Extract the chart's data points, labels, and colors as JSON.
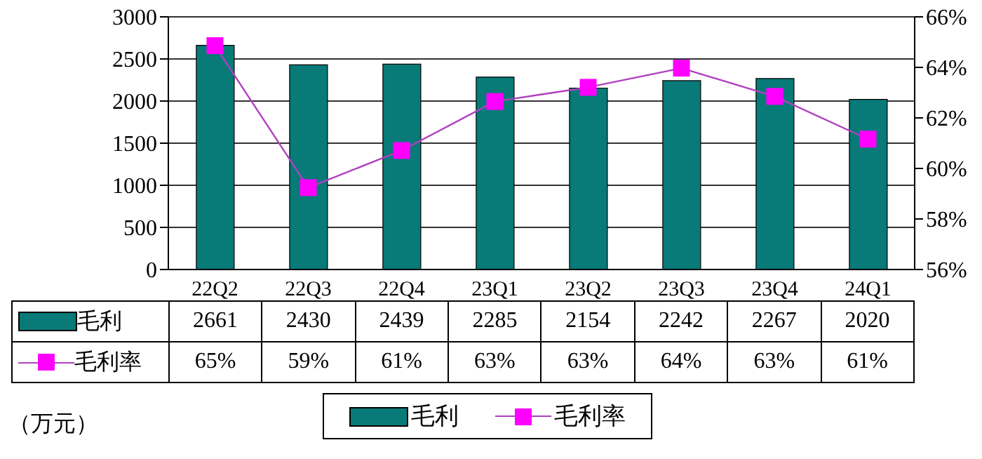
{
  "chart_data": {
    "type": "bar",
    "categories": [
      "22Q2",
      "22Q3",
      "22Q4",
      "23Q1",
      "23Q2",
      "23Q3",
      "23Q4",
      "24Q1"
    ],
    "series": [
      {
        "name": "毛利",
        "color": "#087a78",
        "values": [
          2661,
          2430,
          2439,
          2285,
          2154,
          2242,
          2267,
          2020
        ],
        "value_labels": [
          "2661",
          "2430",
          "2439",
          "2285",
          "2154",
          "2242",
          "2267",
          "2020"
        ]
      },
      {
        "name": "毛利率",
        "type": "line",
        "axis": "y2",
        "color": "#b040c0",
        "marker": "square",
        "values": [
          64.86,
          59.24,
          60.71,
          62.65,
          63.21,
          63.97,
          62.85,
          61.16
        ],
        "value_labels": [
          "65%",
          "59%",
          "61%",
          "63%",
          "63%",
          "64%",
          "63%",
          "61%"
        ]
      }
    ],
    "ylim": [
      0,
      3000
    ],
    "yticks": [
      0,
      500,
      1000,
      1500,
      2000,
      2500,
      3000
    ],
    "y2lim": [
      56,
      66
    ],
    "y2ticks": [
      {
        "value": 56,
        "label": "56%"
      },
      {
        "value": 58,
        "label": "58%"
      },
      {
        "value": 60,
        "label": "60%"
      },
      {
        "value": 62,
        "label": "62%"
      },
      {
        "value": 64,
        "label": "64%"
      },
      {
        "value": 66,
        "label": "66%"
      }
    ],
    "grid": "y",
    "legend": "bottom",
    "annotations": [
      "（万元）"
    ]
  }
}
